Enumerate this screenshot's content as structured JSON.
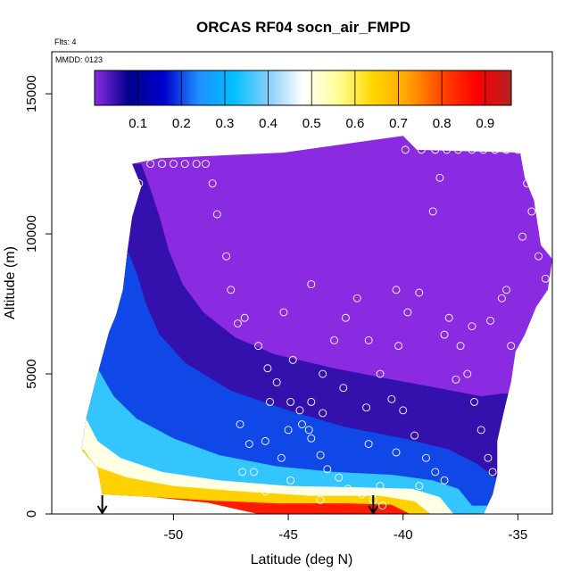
{
  "chart_data": {
    "type": "heatmap",
    "title": "ORCAS RF04 socn_air_FMPD",
    "annotations": {
      "flights": "Flts: 4",
      "date": "MMDD: 0123"
    },
    "xlabel": "Latitude (deg N)",
    "ylabel": "Altitude (m)",
    "xlim": [
      -55.3,
      -33.5
    ],
    "ylim": [
      0,
      16500
    ],
    "x_ticks": [
      -50,
      -45,
      -40,
      -35
    ],
    "x_tick_labels": [
      "-50",
      "-45",
      "-40",
      "-35"
    ],
    "y_ticks": [
      0,
      5000,
      10000,
      15000
    ],
    "y_tick_labels": [
      "0",
      "5000",
      "10000",
      "15000"
    ],
    "colorbar": {
      "range": [
        0,
        0.96
      ],
      "ticks": [
        0.1,
        0.2,
        0.3,
        0.4,
        0.5,
        0.6,
        0.7,
        0.8,
        0.9
      ],
      "tick_labels": [
        "0.1",
        "0.2",
        "0.3",
        "0.4",
        "0.5",
        "0.6",
        "0.7",
        "0.8",
        "0.9"
      ],
      "colors": [
        "#8a2be2",
        "#00008b",
        "#0000cd",
        "#1e90ff",
        "#00bfff",
        "#87cefa",
        "#ffffff",
        "#ffff99",
        "#ffd700",
        "#ffa500",
        "#ff4500",
        "#ff0000",
        "#b22222"
      ]
    },
    "domain_outline": [
      [
        -51.8,
        12500
      ],
      [
        -51.4,
        11700
      ],
      [
        -51.8,
        10600
      ],
      [
        -52.0,
        9400
      ],
      [
        -52.2,
        8000
      ],
      [
        -52.5,
        7100
      ],
      [
        -52.8,
        6500
      ],
      [
        -53.1,
        5600
      ],
      [
        -53.4,
        4700
      ],
      [
        -53.8,
        3400
      ],
      [
        -54.0,
        2300
      ],
      [
        -53.3,
        1600
      ],
      [
        -53.1,
        700
      ],
      [
        -50.8,
        600
      ],
      [
        -48.5,
        400
      ],
      [
        -46.3,
        0
      ],
      [
        -38.9,
        0
      ],
      [
        -36.5,
        0
      ],
      [
        -36.1,
        700
      ],
      [
        -35.9,
        1400
      ],
      [
        -35.9,
        2600
      ],
      [
        -35.6,
        3700
      ],
      [
        -35.3,
        4700
      ],
      [
        -35.1,
        5800
      ],
      [
        -34.7,
        6400
      ],
      [
        -34.2,
        7400
      ],
      [
        -33.7,
        8000
      ],
      [
        -33.5,
        9100
      ],
      [
        -34.0,
        9600
      ],
      [
        -34.3,
        11200
      ],
      [
        -34.7,
        12000
      ],
      [
        -34.9,
        12900
      ],
      [
        -39.4,
        13000
      ],
      [
        -40.0,
        13500
      ],
      [
        -45.2,
        12900
      ],
      [
        -50.6,
        12700
      ]
    ],
    "contours": [
      {
        "level": 0.05,
        "points": [
          [
            -51.4,
            12500
          ],
          [
            -51.0,
            11600
          ],
          [
            -50.6,
            10600
          ],
          [
            -50.2,
            9400
          ],
          [
            -49.6,
            8200
          ],
          [
            -48.7,
            7200
          ],
          [
            -47.3,
            6300
          ],
          [
            -45.6,
            5700
          ],
          [
            -43.0,
            5200
          ],
          [
            -40.5,
            4800
          ],
          [
            -38.5,
            4500
          ],
          [
            -36.6,
            4200
          ],
          [
            -35.7,
            4300
          ]
        ]
      },
      {
        "level": 0.2,
        "points": [
          [
            -52.1,
            9600
          ],
          [
            -51.6,
            8600
          ],
          [
            -51.2,
            7500
          ],
          [
            -50.6,
            6400
          ],
          [
            -49.5,
            5400
          ],
          [
            -47.5,
            4400
          ],
          [
            -45.0,
            3700
          ],
          [
            -42.5,
            3100
          ],
          [
            -40.0,
            2700
          ],
          [
            -38.0,
            2300
          ],
          [
            -36.8,
            1800
          ],
          [
            -36.0,
            1300
          ]
        ]
      },
      {
        "level": 0.35,
        "points": [
          [
            -53.3,
            5200
          ],
          [
            -52.6,
            4200
          ],
          [
            -51.6,
            3400
          ],
          [
            -50.0,
            2700
          ],
          [
            -48.0,
            2100
          ],
          [
            -45.5,
            1700
          ],
          [
            -43.0,
            1500
          ],
          [
            -40.5,
            1400
          ],
          [
            -38.7,
            1200
          ],
          [
            -37.6,
            900
          ],
          [
            -37.0,
            300
          ]
        ]
      },
      {
        "level": 0.5,
        "points": [
          [
            -53.8,
            3400
          ],
          [
            -53.3,
            2600
          ],
          [
            -52.3,
            2000
          ],
          [
            -50.5,
            1500
          ],
          [
            -48.0,
            1200
          ],
          [
            -45.0,
            1000
          ],
          [
            -42.0,
            950
          ],
          [
            -39.6,
            900
          ],
          [
            -38.4,
            600
          ],
          [
            -37.8,
            0
          ]
        ]
      },
      {
        "level": 0.65,
        "points": [
          [
            -53.9,
            2300
          ],
          [
            -53.4,
            1700
          ],
          [
            -52.0,
            1300
          ],
          [
            -50.0,
            1000
          ],
          [
            -47.0,
            800
          ],
          [
            -44.0,
            650
          ],
          [
            -41.0,
            650
          ],
          [
            -39.5,
            450
          ],
          [
            -38.8,
            0
          ]
        ]
      },
      {
        "level": 0.85,
        "points": [
          [
            -50.8,
            600
          ],
          [
            -48.5,
            480
          ],
          [
            -45.5,
            380
          ],
          [
            -42.5,
            380
          ],
          [
            -40.5,
            330
          ],
          [
            -39.7,
            0
          ]
        ]
      }
    ],
    "samples": [
      [
        -51.0,
        12500
      ],
      [
        -50.5,
        12500
      ],
      [
        -50.0,
        12500
      ],
      [
        -49.5,
        12500
      ],
      [
        -49.0,
        12500
      ],
      [
        -48.6,
        12500
      ],
      [
        -51.5,
        11800
      ],
      [
        -48.3,
        11800
      ],
      [
        -48.1,
        10700
      ],
      [
        -47.7,
        9200
      ],
      [
        -47.5,
        8000
      ],
      [
        -46.9,
        7000
      ],
      [
        -46.3,
        6000
      ],
      [
        -45.9,
        5200
      ],
      [
        -45.5,
        4700
      ],
      [
        -44.9,
        4000
      ],
      [
        -44.4,
        3200
      ],
      [
        -44.0,
        2700
      ],
      [
        -43.6,
        2100
      ],
      [
        -43.3,
        1600
      ],
      [
        -42.8,
        1300
      ],
      [
        -42.4,
        900
      ],
      [
        -41.8,
        700
      ],
      [
        -41.3,
        500
      ],
      [
        -40.9,
        300
      ],
      [
        -47.0,
        1500
      ],
      [
        -46.5,
        1500
      ],
      [
        -46.0,
        2600
      ],
      [
        -45.3,
        2000
      ],
      [
        -45.0,
        3000
      ],
      [
        -44.5,
        3700
      ],
      [
        -44.0,
        4000
      ],
      [
        -43.5,
        5000
      ],
      [
        -43.0,
        6200
      ],
      [
        -42.5,
        7000
      ],
      [
        -42.0,
        7700
      ],
      [
        -41.5,
        6200
      ],
      [
        -41.0,
        5000
      ],
      [
        -40.5,
        4100
      ],
      [
        -40.0,
        3700
      ],
      [
        -39.5,
        2800
      ],
      [
        -39.0,
        2000
      ],
      [
        -38.6,
        1500
      ],
      [
        -38.2,
        1200
      ],
      [
        -40.2,
        6000
      ],
      [
        -39.8,
        7200
      ],
      [
        -39.3,
        7900
      ],
      [
        -38.7,
        10800
      ],
      [
        -38.4,
        12000
      ],
      [
        -38.0,
        7000
      ],
      [
        -37.5,
        6000
      ],
      [
        -37.2,
        5000
      ],
      [
        -36.9,
        4000
      ],
      [
        -36.6,
        3000
      ],
      [
        -36.3,
        2000
      ],
      [
        -36.1,
        1500
      ],
      [
        -36.0,
        500
      ],
      [
        -35.7,
        7700
      ],
      [
        -35.3,
        6000
      ],
      [
        -35.0,
        4700
      ],
      [
        -34.6,
        11800
      ],
      [
        -34.4,
        10800
      ],
      [
        -34.1,
        9200
      ],
      [
        -33.8,
        8400
      ],
      [
        -39.9,
        13000
      ],
      [
        -39.2,
        13000
      ],
      [
        -38.6,
        13000
      ],
      [
        -38.1,
        13000
      ],
      [
        -37.6,
        13000
      ],
      [
        -37.0,
        13000
      ],
      [
        -36.5,
        13000
      ],
      [
        -36.0,
        13000
      ],
      [
        -35.5,
        13000
      ],
      [
        -35.0,
        13000
      ],
      [
        -44.0,
        8200
      ],
      [
        -45.2,
        7200
      ],
      [
        -40.3,
        8000
      ],
      [
        -37.0,
        6700
      ],
      [
        -41.6,
        3800
      ],
      [
        -45.8,
        4000
      ],
      [
        -44.8,
        5500
      ],
      [
        -42.6,
        4500
      ],
      [
        -47.1,
        3200
      ],
      [
        -46.7,
        2500
      ],
      [
        -47.2,
        6800
      ],
      [
        -44.1,
        3000
      ],
      [
        -41.5,
        2500
      ],
      [
        -40.3,
        2200
      ],
      [
        -43.5,
        3600
      ],
      [
        -37.7,
        4800
      ],
      [
        -38.2,
        6400
      ],
      [
        -36.2,
        6900
      ],
      [
        -35.5,
        8000
      ],
      [
        -34.8,
        9900
      ],
      [
        -41.0,
        1000
      ],
      [
        -43.6,
        500
      ],
      [
        -39.3,
        1000
      ],
      [
        -38.8,
        300
      ],
      [
        -46.0,
        800
      ],
      [
        -44.9,
        1200
      ]
    ],
    "markers": [
      -53.1,
      -41.3
    ]
  }
}
